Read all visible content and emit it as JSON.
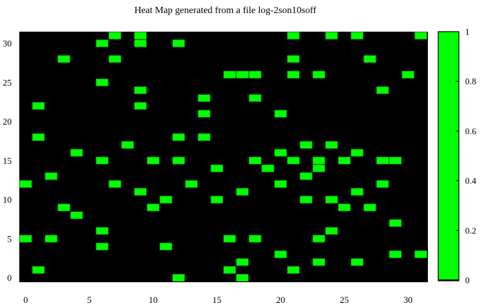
{
  "chart_data": {
    "type": "heatmap",
    "title": "Heat Map generated from a file log-2son10soff",
    "xlabel": "",
    "ylabel": "",
    "x_range": [
      0,
      31
    ],
    "y_range": [
      0,
      31
    ],
    "x_ticks": [
      0,
      5,
      10,
      15,
      20,
      25,
      30
    ],
    "y_ticks": [
      0,
      5,
      10,
      15,
      20,
      25,
      30
    ],
    "colorbar": {
      "ticks": [
        0,
        0.2,
        0.4,
        0.6,
        0.8,
        1
      ],
      "tick_labels": [
        "0",
        "0.2",
        "0.4",
        "0.6",
        "0.8",
        "1"
      ],
      "range": [
        0,
        1
      ]
    },
    "palette": {
      "background_value_0": "#000000",
      "value_1": "#00ff00",
      "cell_border": "#008800"
    },
    "grid": false,
    "legend": "colorbar-right",
    "description_of_values": "binary cells; listed points have value 1, all others 0",
    "points": [
      [
        9,
        31
      ],
      [
        7,
        31
      ],
      [
        21,
        31
      ],
      [
        24,
        31
      ],
      [
        26,
        31
      ],
      [
        31,
        31
      ],
      [
        6,
        30
      ],
      [
        9,
        30
      ],
      [
        12,
        30
      ],
      [
        3,
        28
      ],
      [
        7,
        28
      ],
      [
        21,
        28
      ],
      [
        27,
        28
      ],
      [
        16,
        26
      ],
      [
        17,
        26
      ],
      [
        18,
        26
      ],
      [
        21,
        26
      ],
      [
        23,
        26
      ],
      [
        30,
        26
      ],
      [
        6,
        25
      ],
      [
        9,
        24
      ],
      [
        28,
        24
      ],
      [
        14,
        23
      ],
      [
        18,
        23
      ],
      [
        1,
        22
      ],
      [
        9,
        22
      ],
      [
        14,
        21
      ],
      [
        20,
        21
      ],
      [
        1,
        18
      ],
      [
        12,
        18
      ],
      [
        14,
        18
      ],
      [
        8,
        17
      ],
      [
        22,
        17
      ],
      [
        24,
        17
      ],
      [
        4,
        16
      ],
      [
        20,
        16
      ],
      [
        26,
        16
      ],
      [
        6,
        15
      ],
      [
        10,
        15
      ],
      [
        12,
        15
      ],
      [
        18,
        15
      ],
      [
        21,
        15
      ],
      [
        23,
        15
      ],
      [
        25,
        15
      ],
      [
        28,
        15
      ],
      [
        29,
        15
      ],
      [
        15,
        14
      ],
      [
        19,
        14
      ],
      [
        23,
        14
      ],
      [
        2,
        13
      ],
      [
        22,
        13
      ],
      [
        0,
        12
      ],
      [
        7,
        12
      ],
      [
        13,
        12
      ],
      [
        20,
        12
      ],
      [
        28,
        12
      ],
      [
        9,
        11
      ],
      [
        17,
        11
      ],
      [
        26,
        11
      ],
      [
        11,
        10
      ],
      [
        15,
        10
      ],
      [
        22,
        10
      ],
      [
        24,
        10
      ],
      [
        3,
        9
      ],
      [
        10,
        9
      ],
      [
        25,
        9
      ],
      [
        27,
        9
      ],
      [
        4,
        8
      ],
      [
        29,
        7
      ],
      [
        6,
        6
      ],
      [
        24,
        6
      ],
      [
        0,
        5
      ],
      [
        2,
        5
      ],
      [
        16,
        5
      ],
      [
        18,
        5
      ],
      [
        23,
        5
      ],
      [
        6,
        4
      ],
      [
        11,
        4
      ],
      [
        20,
        3
      ],
      [
        29,
        3
      ],
      [
        31,
        3
      ],
      [
        17,
        2
      ],
      [
        23,
        2
      ],
      [
        26,
        2
      ],
      [
        1,
        1
      ],
      [
        16,
        1
      ],
      [
        21,
        1
      ],
      [
        12,
        0
      ],
      [
        17,
        0
      ]
    ]
  }
}
